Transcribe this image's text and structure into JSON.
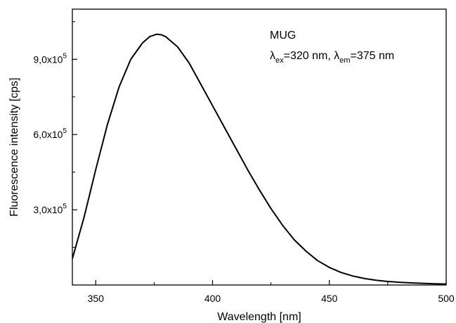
{
  "chart_data": {
    "type": "line",
    "xlabel": "Wavelength [nm]",
    "ylabel": "Fluorescence intensity [cps]",
    "xlim": [
      340,
      500
    ],
    "ylim": [
      0,
      1100000
    ],
    "x_ticks": [
      350,
      400,
      450,
      500
    ],
    "x_tick_labels": [
      "350",
      "400",
      "450",
      "500"
    ],
    "y_ticks": [
      {
        "value": 300000,
        "mantissa": "3,0x10",
        "exponent": "5"
      },
      {
        "value": 600000,
        "mantissa": "6,0x10",
        "exponent": "5"
      },
      {
        "value": 900000,
        "mantissa": "9,0x10",
        "exponent": "5"
      }
    ],
    "grid": false,
    "annotation": {
      "compound": "MUG",
      "lambda_symbol": "λ",
      "ex_subscript": "ex",
      "ex_value": "=320 nm, ",
      "em_subscript": "em",
      "em_value": "=375 nm"
    },
    "series": [
      {
        "color": "#000000",
        "x": [
          340,
          345,
          350,
          355,
          360,
          365,
          370,
          373,
          376,
          378,
          380,
          385,
          390,
          395,
          400,
          405,
          410,
          415,
          420,
          425,
          430,
          435,
          440,
          445,
          450,
          455,
          460,
          465,
          470,
          475,
          480,
          485,
          490,
          495,
          500
        ],
        "y": [
          105000,
          270000,
          460000,
          640000,
          790000,
          900000,
          965000,
          990000,
          1000000,
          998000,
          990000,
          950000,
          885000,
          800000,
          715000,
          630000,
          545000,
          460000,
          380000,
          305000,
          238000,
          180000,
          135000,
          97000,
          70000,
          50000,
          36000,
          26000,
          19000,
          14000,
          11000,
          8500,
          6500,
          5000,
          4000
        ]
      }
    ]
  }
}
